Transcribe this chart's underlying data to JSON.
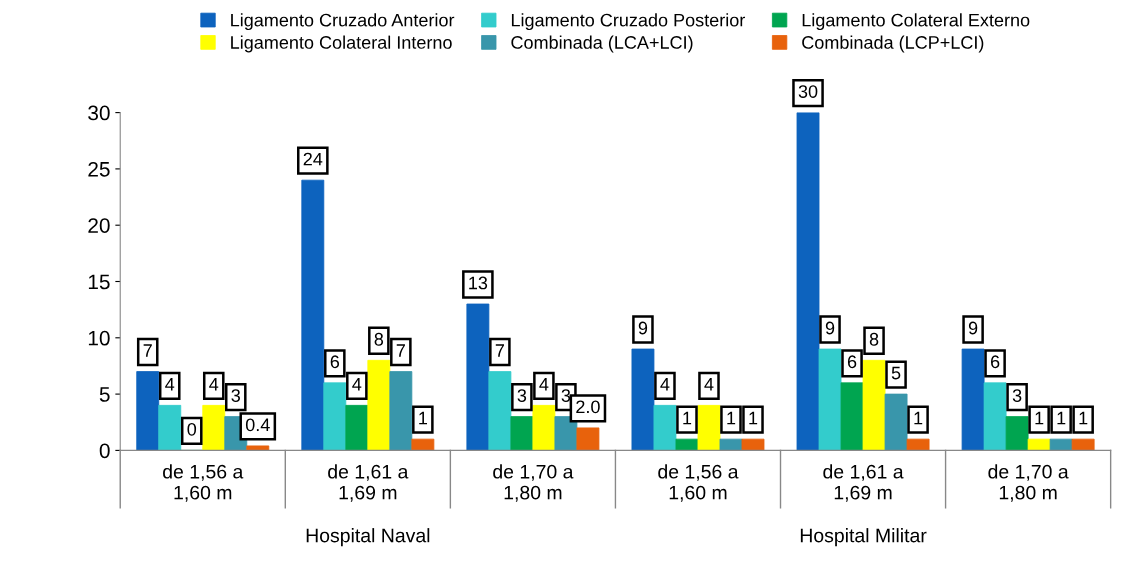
{
  "chart_data": {
    "type": "bar",
    "categories": [
      "de 1,56 a\n1,60 m",
      "de 1,61 a\n1,69 m",
      "de 1,70 a\n1,80 m",
      "de 1,56 a\n1,60 m",
      "de 1,61 a\n1,69 m",
      "de 1,70 a\n1,80 m"
    ],
    "series": [
      {
        "name": "Ligamento Cruzado Anterior",
        "color": "#0d63be",
        "values": [
          7,
          24,
          13,
          9,
          30,
          9
        ],
        "value_labels": [
          "7",
          "24",
          "13",
          "9",
          "30",
          "9"
        ]
      },
      {
        "name": "Ligamento Cruzado Posterior",
        "color": "#33cccc",
        "values": [
          4,
          6,
          7,
          4,
          9,
          6
        ],
        "value_labels": [
          "4",
          "6",
          "7",
          "4",
          "9",
          "6"
        ]
      },
      {
        "name": "Ligamento Colateral Externo",
        "color": "#00a550",
        "values": [
          0,
          4,
          3,
          1,
          6,
          3
        ],
        "value_labels": [
          "0",
          "4",
          "3",
          "1",
          "6",
          "3"
        ]
      },
      {
        "name": "Ligamento Colateral Interno",
        "color": "#ffff00",
        "values": [
          4,
          8,
          4,
          4,
          8,
          1
        ],
        "value_labels": [
          "4",
          "8",
          "4",
          "4",
          "8",
          "1"
        ]
      },
      {
        "name": "Combinada (LCA+LCI)",
        "color": "#3996ab",
        "values": [
          3,
          7,
          3,
          1,
          5,
          1
        ],
        "value_labels": [
          "3",
          "7",
          "3",
          "1",
          "5",
          "1"
        ]
      },
      {
        "name": "Combinada (LCP+LCI)",
        "color": "#e8620c",
        "values": [
          0.4,
          1,
          2.0,
          1,
          1,
          1
        ],
        "value_labels": [
          "0.4",
          "1",
          "2.0",
          "1",
          "1",
          "1"
        ]
      }
    ],
    "ylim": [
      0,
      30
    ],
    "yticks": [
      0,
      5,
      10,
      15,
      20,
      25,
      30
    ],
    "grid": false,
    "legend": "top",
    "annotations": [
      "Hospital Naval",
      "Hospital Militar"
    ]
  }
}
